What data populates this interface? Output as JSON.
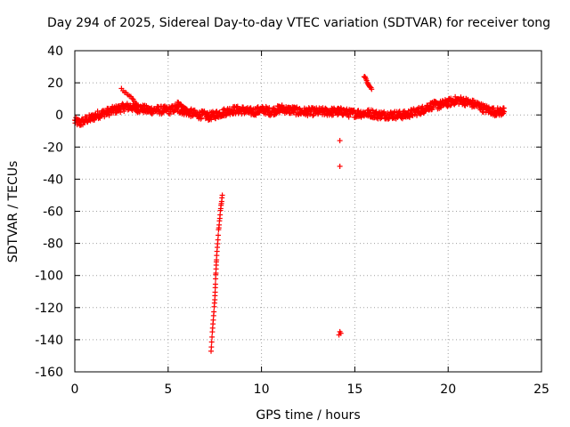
{
  "chart_data": {
    "type": "scatter",
    "title": "Day 294 of 2025, Sidereal Day-to-day VTEC variation (SDTVAR) for receiver tong",
    "xlabel": "GPS time / hours",
    "ylabel": "SDTVAR / TECUs",
    "xlim": [
      0,
      25
    ],
    "ylim": [
      -160,
      40
    ],
    "xticks": [
      0,
      5,
      10,
      15,
      20,
      25
    ],
    "yticks": [
      -160,
      -140,
      -120,
      -100,
      -80,
      -60,
      -40,
      -20,
      0,
      20,
      40
    ],
    "grid": true,
    "marker": "+",
    "series_color": "#ff0000",
    "series": [
      {
        "name": "SDTVAR",
        "trend": [
          [
            0.0,
            -4
          ],
          [
            0.3,
            -5
          ],
          [
            0.6,
            -3
          ],
          [
            0.9,
            -2
          ],
          [
            1.2,
            0
          ],
          [
            1.5,
            1
          ],
          [
            1.8,
            2
          ],
          [
            2.1,
            3
          ],
          [
            2.4,
            4
          ],
          [
            2.7,
            5
          ],
          [
            3.0,
            5
          ],
          [
            3.3,
            4
          ],
          [
            3.6,
            4
          ],
          [
            3.9,
            3
          ],
          [
            4.2,
            3
          ],
          [
            4.5,
            3
          ],
          [
            4.8,
            3
          ],
          [
            5.1,
            3
          ],
          [
            5.4,
            4
          ],
          [
            5.7,
            3
          ],
          [
            6.0,
            2
          ],
          [
            6.3,
            1
          ],
          [
            6.6,
            0
          ],
          [
            6.9,
            0
          ],
          [
            7.2,
            -1
          ],
          [
            7.5,
            0
          ],
          [
            7.8,
            1
          ],
          [
            8.1,
            2
          ],
          [
            8.4,
            3
          ],
          [
            8.7,
            3
          ],
          [
            9.0,
            3
          ],
          [
            9.3,
            2
          ],
          [
            9.6,
            2
          ],
          [
            9.9,
            3
          ],
          [
            10.2,
            3
          ],
          [
            10.5,
            2
          ],
          [
            10.8,
            3
          ],
          [
            11.1,
            4
          ],
          [
            11.4,
            3
          ],
          [
            11.7,
            3
          ],
          [
            12.0,
            2
          ],
          [
            12.3,
            2
          ],
          [
            12.6,
            2
          ],
          [
            12.9,
            2
          ],
          [
            13.2,
            2
          ],
          [
            13.5,
            2
          ],
          [
            13.8,
            2
          ],
          [
            14.1,
            2
          ],
          [
            14.4,
            2
          ],
          [
            14.7,
            1
          ],
          [
            15.0,
            1
          ],
          [
            15.3,
            1
          ],
          [
            15.6,
            1
          ],
          [
            15.9,
            1
          ],
          [
            16.2,
            0
          ],
          [
            16.5,
            0
          ],
          [
            16.8,
            0
          ],
          [
            17.1,
            0
          ],
          [
            17.4,
            0
          ],
          [
            17.7,
            0
          ],
          [
            18.0,
            1
          ],
          [
            18.3,
            2
          ],
          [
            18.6,
            3
          ],
          [
            18.9,
            5
          ],
          [
            19.2,
            6
          ],
          [
            19.5,
            6
          ],
          [
            19.8,
            7
          ],
          [
            20.1,
            8
          ],
          [
            20.4,
            9
          ],
          [
            20.7,
            9
          ],
          [
            21.0,
            8
          ],
          [
            21.3,
            7
          ],
          [
            21.6,
            6
          ],
          [
            21.9,
            4
          ],
          [
            22.2,
            3
          ],
          [
            22.5,
            2
          ],
          [
            22.8,
            2
          ],
          [
            23.0,
            2
          ]
        ],
        "segments": [
          [
            [
              2.5,
              16
            ],
            [
              3.0,
              11
            ],
            [
              3.4,
              6
            ]
          ],
          [
            [
              5.5,
              8
            ],
            [
              5.8,
              5
            ],
            [
              6.1,
              2
            ]
          ],
          [
            [
              7.3,
              -147
            ],
            [
              7.4,
              -130
            ],
            [
              7.5,
              -115
            ],
            [
              7.55,
              -100
            ],
            [
              7.6,
              -88
            ],
            [
              7.7,
              -72
            ],
            [
              7.8,
              -60
            ],
            [
              7.9,
              -50
            ]
          ],
          [
            [
              15.5,
              24
            ],
            [
              15.7,
              20
            ],
            [
              15.9,
              16
            ]
          ]
        ],
        "isolated": [
          [
            14.2,
            -16
          ],
          [
            14.2,
            -32
          ],
          [
            14.2,
            -135
          ],
          [
            14.25,
            -136
          ],
          [
            14.15,
            -137
          ]
        ]
      }
    ]
  }
}
